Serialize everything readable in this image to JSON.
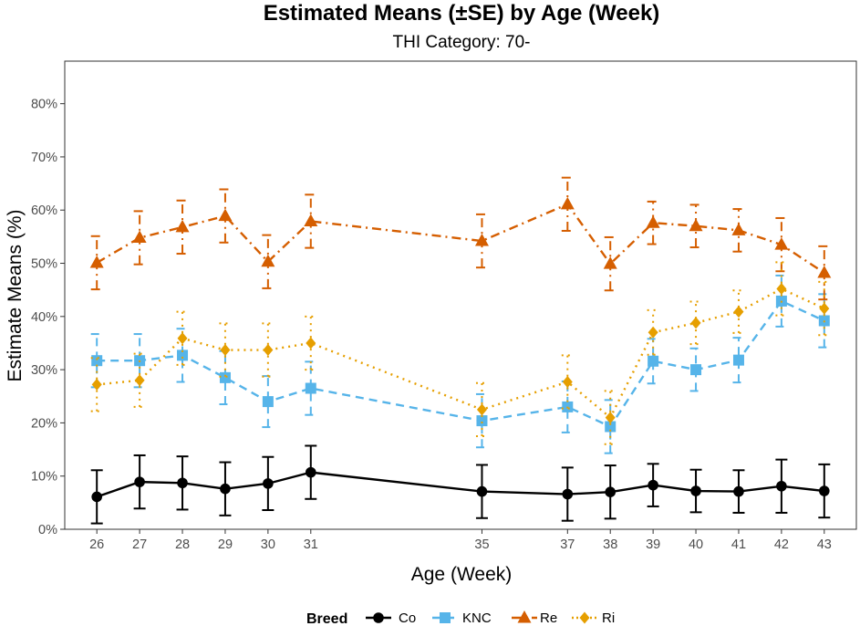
{
  "chart_data": {
    "type": "line",
    "title": "Estimated Means (±SE) by Age (Week)",
    "subtitle": "THI Category: 70-",
    "xlabel": "Age (Week)",
    "ylabel": "Estimate Means (%)",
    "x": [
      26,
      27,
      28,
      29,
      30,
      31,
      35,
      37,
      38,
      39,
      40,
      41,
      42,
      43
    ],
    "xlim": [
      25.25,
      43.75
    ],
    "ylim": [
      0,
      88
    ],
    "yticks": [
      0,
      10,
      20,
      30,
      40,
      50,
      60,
      70,
      80
    ],
    "ytick_labels": [
      "0%",
      "10%",
      "20%",
      "30%",
      "40%",
      "50%",
      "60%",
      "70%",
      "80%"
    ],
    "grid": false,
    "legend_title": "Breed",
    "legend_position": "bottom",
    "series": [
      {
        "name": "Co",
        "color": "#000000",
        "marker": "circle",
        "linestyle": "solid",
        "x": [
          26,
          27,
          28,
          29,
          30,
          31,
          35,
          37,
          38,
          39,
          40,
          41,
          42,
          43
        ],
        "values": [
          6.1,
          8.9,
          8.7,
          7.6,
          8.6,
          10.7,
          7.1,
          6.6,
          7.0,
          8.3,
          7.2,
          7.1,
          8.1,
          7.2
        ],
        "se": [
          5.0,
          5.0,
          5.0,
          5.0,
          5.0,
          5.0,
          5.0,
          5.0,
          5.0,
          4.0,
          4.0,
          4.0,
          5.0,
          5.0
        ]
      },
      {
        "name": "KNC",
        "color": "#56B4E9",
        "marker": "square",
        "linestyle": "dashed",
        "x": [
          26,
          27,
          28,
          29,
          30,
          31,
          35,
          37,
          38,
          39,
          40,
          41,
          42,
          43
        ],
        "values": [
          31.7,
          31.7,
          32.7,
          28.5,
          24.0,
          26.5,
          20.4,
          23.0,
          19.3,
          31.6,
          30.0,
          31.8,
          42.9,
          39.2
        ],
        "se": [
          5.0,
          5.0,
          5.0,
          5.0,
          4.8,
          5.0,
          5.0,
          4.8,
          5.0,
          4.2,
          4.0,
          4.2,
          4.8,
          5.0
        ]
      },
      {
        "name": "Re",
        "color": "#D55E00",
        "marker": "triangle",
        "linestyle": "dashdot",
        "x": [
          26,
          27,
          28,
          29,
          30,
          31,
          35,
          37,
          38,
          39,
          40,
          41,
          42,
          43
        ],
        "values": [
          50.1,
          54.8,
          56.8,
          58.9,
          50.3,
          57.9,
          54.2,
          61.1,
          49.9,
          57.6,
          57.0,
          56.2,
          53.5,
          48.2
        ],
        "se": [
          5.0,
          5.0,
          5.0,
          5.0,
          5.0,
          5.0,
          5.0,
          5.0,
          5.0,
          4.0,
          4.0,
          4.0,
          5.0,
          5.0
        ]
      },
      {
        "name": "Ri",
        "color": "#E69F00",
        "marker": "diamond",
        "linestyle": "dotted",
        "x": [
          26,
          27,
          28,
          29,
          30,
          31,
          35,
          37,
          38,
          39,
          40,
          41,
          42,
          43
        ],
        "values": [
          27.2,
          28.0,
          35.9,
          33.7,
          33.7,
          35.0,
          22.5,
          27.7,
          21.0,
          37.0,
          38.8,
          40.9,
          45.2,
          41.5
        ],
        "se": [
          5.0,
          5.0,
          5.0,
          5.0,
          5.0,
          5.0,
          5.0,
          5.0,
          5.0,
          4.2,
          4.0,
          4.0,
          5.0,
          5.0
        ]
      }
    ]
  }
}
